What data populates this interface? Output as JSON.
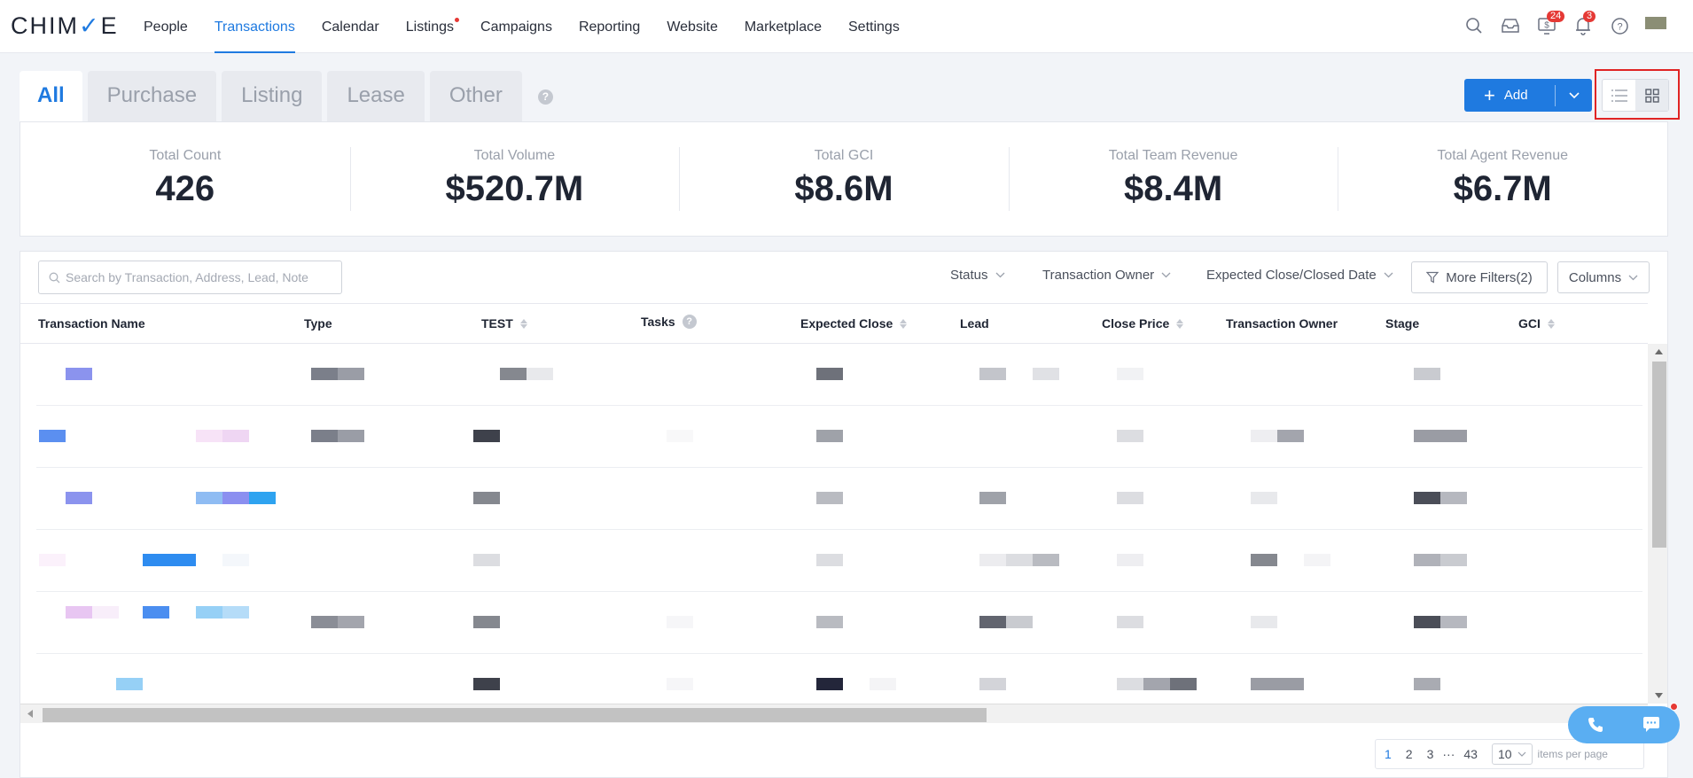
{
  "logo": {
    "pre": "CHIM",
    "accent": "✓",
    "post": "E"
  },
  "nav": {
    "items": [
      {
        "label": "People",
        "active": false
      },
      {
        "label": "Transactions",
        "active": true
      },
      {
        "label": "Calendar",
        "active": false
      },
      {
        "label": "Listings",
        "active": false,
        "dot": true
      },
      {
        "label": "Campaigns",
        "active": false
      },
      {
        "label": "Reporting",
        "active": false
      },
      {
        "label": "Website",
        "active": false
      },
      {
        "label": "Marketplace",
        "active": false
      },
      {
        "label": "Settings",
        "active": false
      }
    ],
    "icons": {
      "search": "search-icon",
      "inbox": "inbox-icon",
      "dollar_badge": "24",
      "bell_badge": "3",
      "help": "help-icon"
    }
  },
  "tabs": [
    "All",
    "Purchase",
    "Listing",
    "Lease",
    "Other"
  ],
  "tab_help": "?",
  "add_button": {
    "label": "Add"
  },
  "stats": [
    {
      "label": "Total Count",
      "value": "426"
    },
    {
      "label": "Total Volume",
      "value": "$520.7M"
    },
    {
      "label": "Total GCI",
      "value": "$8.6M"
    },
    {
      "label": "Total Team Revenue",
      "value": "$8.4M"
    },
    {
      "label": "Total Agent Revenue",
      "value": "$6.7M"
    }
  ],
  "search": {
    "placeholder": "Search by Transaction, Address, Lead, Note",
    "value": ""
  },
  "filters": {
    "status": "Status",
    "owner": "Transaction Owner",
    "date": "Expected Close/Closed Date",
    "more": "More Filters(2)",
    "columns": "Columns"
  },
  "columns": [
    "Transaction Name",
    "Type",
    "TEST",
    "Tasks",
    "Expected Close",
    "Lead",
    "Close Price",
    "Transaction Owner",
    "Stage",
    "GCI"
  ],
  "tasks_help": "?",
  "pagination": {
    "pages": [
      "1",
      "2",
      "3"
    ],
    "ellipsis": "···",
    "last": "43",
    "current": "1",
    "per_page": "10",
    "per_page_label": "items per page"
  },
  "colors": {
    "accent": "#1f7ae0",
    "badge": "#e53935"
  }
}
